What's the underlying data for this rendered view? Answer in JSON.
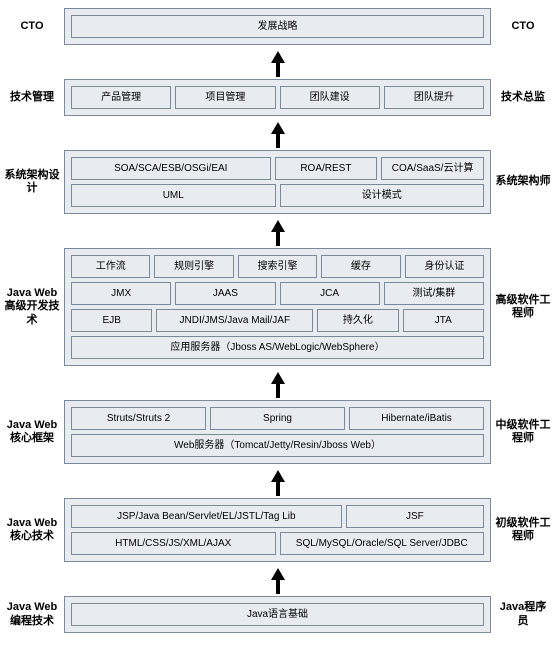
{
  "colors": {
    "box_bg": "#e8ecf0",
    "box_border": "#7a8a9a"
  },
  "layers": [
    {
      "left": "CTO",
      "right": "CTO",
      "rows": [
        [
          "发展战略"
        ]
      ]
    },
    {
      "left": "技术管理",
      "right": "技术总监",
      "rows": [
        [
          "产品管理",
          "项目管理",
          "团队建设",
          "团队提升"
        ]
      ]
    },
    {
      "left": "系统架构设计",
      "right": "系统架构师",
      "rows": [
        [
          {
            "t": "SOA/SCA/ESB/OSGi/EAI",
            "f": 2
          },
          {
            "t": "ROA/REST",
            "f": 1
          },
          {
            "t": "COA/SaaS/云计算",
            "f": 1
          }
        ],
        [
          {
            "t": "UML",
            "f": 1
          },
          {
            "t": "设计模式",
            "f": 1
          }
        ]
      ]
    },
    {
      "left": "Java Web 高级开发技术",
      "right": "高级软件工程师",
      "rows": [
        [
          "工作流",
          "规则引擎",
          "搜索引擎",
          "缓存",
          "身份认证"
        ],
        [
          "JMX",
          "JAAS",
          "JCA",
          "测试/集群"
        ],
        [
          {
            "t": "EJB",
            "f": 1
          },
          {
            "t": "JNDI/JMS/Java Mail/JAF",
            "f": 2
          },
          {
            "t": "持久化",
            "f": 1
          },
          {
            "t": "JTA",
            "f": 1
          }
        ],
        [
          "应用服务器（Jboss AS/WebLogic/WebSphere）"
        ]
      ]
    },
    {
      "left": "Java Web 核心框架",
      "right": "中级软件工程师",
      "rows": [
        [
          "Struts/Struts 2",
          "Spring",
          "Hibernate/iBatis"
        ],
        [
          "Web服务器（Tomcat/Jetty/Resin/Jboss Web）"
        ]
      ]
    },
    {
      "left": "Java Web 核心技术",
      "right": "初级软件工程师",
      "rows": [
        [
          {
            "t": "JSP/Java Bean/Servlet/EL/JSTL/Tag Lib",
            "f": 2
          },
          {
            "t": "JSF",
            "f": 1
          }
        ],
        [
          {
            "t": "HTML/CSS/JS/XML/AJAX",
            "f": 1
          },
          {
            "t": "SQL/MySQL/Oracle/SQL Server/JDBC",
            "f": 1
          }
        ]
      ]
    },
    {
      "left": "Java Web 编程技术",
      "right": "Java程序员",
      "rows": [
        [
          "Java语言基础"
        ]
      ]
    }
  ]
}
